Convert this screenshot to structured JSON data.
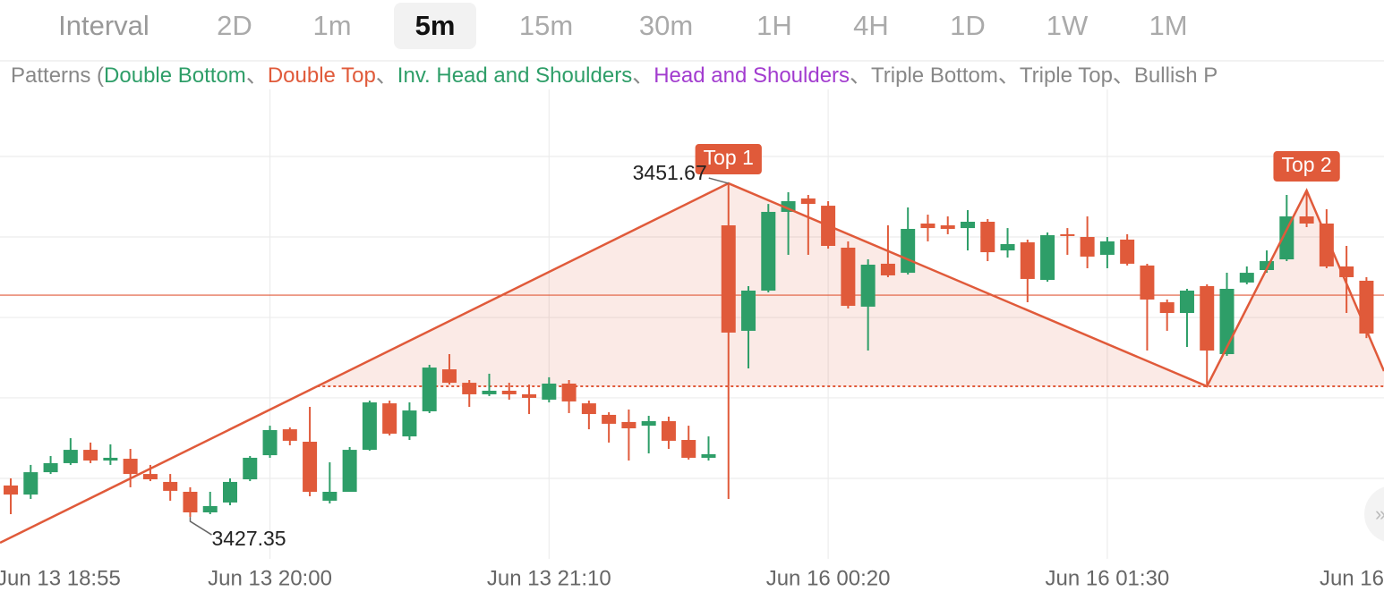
{
  "toolbar": {
    "label": "Interval",
    "options": [
      "2D",
      "1m",
      "5m",
      "15m",
      "30m",
      "1H",
      "4H",
      "1D",
      "1W",
      "1M"
    ],
    "selected": "5m"
  },
  "patterns_legend": {
    "prefix": "Patterns (",
    "separator": "、",
    "items": [
      {
        "name": "Double Bottom",
        "color": "#2e9e68"
      },
      {
        "name": "Double Top",
        "color": "#e05a3a"
      },
      {
        "name": "Inv. Head and Shoulders",
        "color": "#2e9e68"
      },
      {
        "name": "Head and Shoulders",
        "color": "#a23ccf"
      },
      {
        "name": "Triple Bottom",
        "color": "#888888"
      },
      {
        "name": "Triple Top",
        "color": "#888888"
      },
      {
        "name": "Bullish P",
        "color": "#888888"
      }
    ]
  },
  "chart_data": {
    "type": "candlestick",
    "up_color": "#2e9e68",
    "down_color": "#e05a3a",
    "xlim": [
      -0.54,
      68.88
    ],
    "ylim": [
      3424.29,
      3458.52
    ],
    "xticks": [
      {
        "value": -1,
        "label": "Jun 13 18:55"
      },
      {
        "value": 13,
        "label": "Jun 13 20:00"
      },
      {
        "value": 27,
        "label": "Jun 13 21:10"
      },
      {
        "value": 41,
        "label": "Jun 16 00:20"
      },
      {
        "value": 55,
        "label": "Jun 16 01:30"
      },
      {
        "value": 69,
        "label": "Jun 16"
      }
    ],
    "ygrid": [
      3453.63,
      3447.76,
      3441.89,
      3436.03,
      3430.16
    ],
    "grid": true,
    "last_price": 3443.52,
    "neckline": 3436.87,
    "pattern": {
      "color": "#e05a3a",
      "points": [
        {
          "x": -0.54,
          "price": 3425.46
        },
        {
          "x": 36,
          "price": 3451.67,
          "label": "Top 1"
        },
        {
          "x": 60,
          "price": 3436.87
        },
        {
          "x": 65,
          "price": 3451.15,
          "label": "Top 2"
        },
        {
          "x": 68.88,
          "price": 3437.98
        }
      ]
    },
    "open": [
      3429.64,
      3428.98,
      3430.61,
      3431.27,
      3432.24,
      3431.46,
      3431.59,
      3430.48,
      3429.9,
      3429.18,
      3427.68,
      3428.4,
      3430.09,
      3431.85,
      3433.74,
      3432.83,
      3428.53,
      3429.18,
      3432.24,
      3435.63,
      3433.22,
      3435.05,
      3438.11,
      3437.13,
      3436.29,
      3436.55,
      3436.29,
      3435.9,
      3437.07,
      3435.63,
      3434.79,
      3434.27,
      3434.0,
      3434.33,
      3432.96,
      3431.66,
      3448.61,
      3440.92,
      3443.85,
      3449.59,
      3450.57,
      3450.04,
      3446.98,
      3442.68,
      3445.81,
      3445.15,
      3448.74,
      3448.61,
      3448.41,
      3448.87,
      3446.78,
      3447.37,
      3444.63,
      3447.96,
      3447.76,
      3446.46,
      3447.57,
      3445.68,
      3443.0,
      3442.22,
      3444.18,
      3439.22,
      3444.44,
      3445.35,
      3446.13,
      3449.26,
      3448.74,
      3445.61,
      3444.57
    ],
    "high": [
      3430.16,
      3431.14,
      3431.79,
      3433.09,
      3432.77,
      3432.64,
      3432.31,
      3431.14,
      3430.48,
      3429.51,
      3429.18,
      3430.16,
      3431.79,
      3434.0,
      3433.87,
      3435.37,
      3431.33,
      3432.44,
      3435.83,
      3435.83,
      3435.7,
      3438.44,
      3439.22,
      3437.33,
      3437.79,
      3437.13,
      3437.0,
      3437.53,
      3437.33,
      3435.83,
      3434.98,
      3435.18,
      3434.72,
      3434.66,
      3434.0,
      3433.22,
      3451.67,
      3444.18,
      3450.17,
      3451.02,
      3450.83,
      3450.37,
      3447.44,
      3446.13,
      3448.61,
      3449.91,
      3449.39,
      3449.26,
      3449.72,
      3449.07,
      3448.41,
      3447.57,
      3448.09,
      3448.41,
      3449.26,
      3447.76,
      3447.96,
      3445.81,
      3443.2,
      3443.98,
      3444.31,
      3445.15,
      3445.61,
      3446.78,
      3450.83,
      3451.02,
      3449.78,
      3447.11,
      3444.83
    ],
    "low": [
      3427.55,
      3428.66,
      3430.48,
      3431.14,
      3431.27,
      3431.14,
      3429.51,
      3429.96,
      3428.53,
      3427.35,
      3427.55,
      3428.2,
      3429.96,
      3431.66,
      3432.57,
      3428.85,
      3428.33,
      3429.18,
      3432.18,
      3433.29,
      3432.96,
      3434.92,
      3437.0,
      3435.37,
      3436.16,
      3435.9,
      3434.85,
      3435.7,
      3434.92,
      3433.74,
      3432.77,
      3431.46,
      3431.98,
      3432.31,
      3431.53,
      3431.46,
      3428.66,
      3438.18,
      3443.72,
      3446.46,
      3446.46,
      3446.91,
      3442.55,
      3439.48,
      3444.83,
      3445.02,
      3447.44,
      3447.96,
      3446.78,
      3446.0,
      3446.26,
      3443.0,
      3444.5,
      3446.46,
      3445.48,
      3445.48,
      3445.68,
      3439.48,
      3440.92,
      3439.74,
      3437.0,
      3439.09,
      3444.31,
      3445.15,
      3446.0,
      3448.48,
      3445.48,
      3442.22,
      3440.39
    ],
    "close": [
      3428.98,
      3430.61,
      3431.27,
      3432.24,
      3431.46,
      3431.66,
      3430.48,
      3430.09,
      3429.25,
      3427.68,
      3428.14,
      3429.9,
      3431.66,
      3433.68,
      3432.9,
      3429.18,
      3429.18,
      3432.24,
      3435.7,
      3433.42,
      3435.11,
      3438.24,
      3437.13,
      3436.29,
      3436.55,
      3436.29,
      3436.03,
      3437.07,
      3435.77,
      3434.85,
      3434.14,
      3433.81,
      3434.33,
      3432.9,
      3431.66,
      3431.92,
      3440.79,
      3443.85,
      3449.59,
      3450.37,
      3450.17,
      3447.11,
      3442.74,
      3445.74,
      3444.96,
      3448.35,
      3448.41,
      3448.35,
      3448.87,
      3446.65,
      3447.24,
      3444.7,
      3447.89,
      3447.83,
      3446.33,
      3447.44,
      3445.81,
      3443.2,
      3442.22,
      3443.85,
      3439.48,
      3443.98,
      3445.15,
      3446.0,
      3449.26,
      3448.74,
      3445.61,
      3444.83,
      3440.72
    ]
  }
}
